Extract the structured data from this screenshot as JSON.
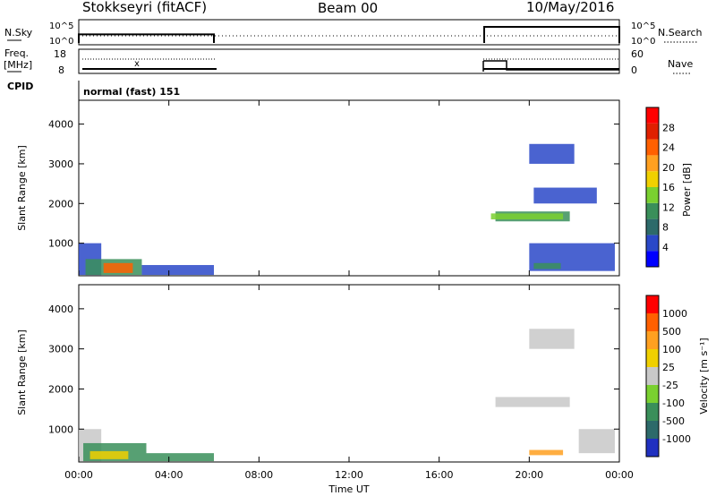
{
  "chart_data": {
    "type": "heatmap",
    "header": {
      "station": "Stokkseyri (fitACF)",
      "beam": "Beam 00",
      "date": "10/May/2016"
    },
    "nsky": {
      "label": "N.Sky",
      "yticks": [
        "10^5",
        "10^0"
      ],
      "right_label": "N.Search",
      "segments": [
        {
          "x_range": [
            "00:00",
            "06:00"
          ],
          "level": 0.4
        },
        {
          "x_range": [
            "18:00",
            "23:59"
          ],
          "level": 0.75
        }
      ]
    },
    "freq": {
      "label_line1": "Freq.",
      "label_line2": "[MHz]",
      "yticks_left": [
        "18",
        "8"
      ],
      "yticks_right": [
        "60",
        "0"
      ],
      "right_label": "Nave",
      "mark": "x"
    },
    "cpid": {
      "label": "CPID",
      "value": "normal (fast) 151"
    },
    "x_axis": {
      "title": "Time UT",
      "ticks": [
        "00:00",
        "04:00",
        "08:00",
        "12:00",
        "16:00",
        "20:00",
        "00:00"
      ],
      "range_hours": [
        0,
        24
      ]
    },
    "panels": [
      {
        "ylabel": "Slant Range [km]",
        "yticks": [
          "1000",
          "2000",
          "3000",
          "4000"
        ],
        "ylim": [
          180,
          4600
        ],
        "colorbar": {
          "title": "Power [dB]",
          "labels": [
            "28",
            "24",
            "20",
            "16",
            "12",
            "8",
            "4"
          ],
          "colors": [
            "#0000ff",
            "#2a48c8",
            "#2d6a6a",
            "#3a8f5a",
            "#7ad030",
            "#f0d000",
            "#ffa020",
            "#ff6000",
            "#e02000",
            "#ff0000"
          ]
        },
        "patches": [
          {
            "x": [
              0.0,
              1.0
            ],
            "r": [
              200,
              1000
            ],
            "color": "#2a48c8"
          },
          {
            "x": [
              0.3,
              2.8
            ],
            "r": [
              200,
              600
            ],
            "color": "#3a8f5a"
          },
          {
            "x": [
              1.1,
              2.4
            ],
            "r": [
              250,
              500
            ],
            "color": "#ff6000"
          },
          {
            "x": [
              2.8,
              6.0
            ],
            "r": [
              200,
              450
            ],
            "color": "#2a48c8"
          },
          {
            "x": [
              18.5,
              21.8
            ],
            "r": [
              1550,
              1800
            ],
            "color": "#3a8f5a"
          },
          {
            "x": [
              18.3,
              21.5
            ],
            "r": [
              1600,
              1750
            ],
            "color": "#7ad030"
          },
          {
            "x": [
              20.0,
              22.0
            ],
            "r": [
              3000,
              3500
            ],
            "color": "#2a48c8"
          },
          {
            "x": [
              20.2,
              23.0
            ],
            "r": [
              2000,
              2400
            ],
            "color": "#2a48c8"
          },
          {
            "x": [
              20.0,
              23.8
            ],
            "r": [
              300,
              1000
            ],
            "color": "#2a48c8"
          },
          {
            "x": [
              20.2,
              21.4
            ],
            "r": [
              350,
              500
            ],
            "color": "#3a8f5a"
          }
        ]
      },
      {
        "ylabel": "Slant Range [km]",
        "yticks": [
          "1000",
          "2000",
          "3000",
          "4000"
        ],
        "ylim": [
          180,
          4600
        ],
        "colorbar": {
          "title": "Velocity [m s⁻¹]",
          "labels": [
            "1000",
            "500",
            "100",
            "25",
            "-25",
            "-100",
            "-500",
            "-1000"
          ],
          "colors": [
            "#2030c0",
            "#2d6a6a",
            "#3a8f5a",
            "#7ad030",
            "#c8c8c8",
            "#f0d000",
            "#ffa020",
            "#ff6000",
            "#ff0000"
          ]
        },
        "patches": [
          {
            "x": [
              0.0,
              1.0
            ],
            "r": [
              200,
              1000
            ],
            "color": "#c8c8c8"
          },
          {
            "x": [
              0.2,
              3.0
            ],
            "r": [
              200,
              650
            ],
            "color": "#3a8f5a"
          },
          {
            "x": [
              0.5,
              2.2
            ],
            "r": [
              250,
              450
            ],
            "color": "#f0d000"
          },
          {
            "x": [
              3.0,
              6.0
            ],
            "r": [
              200,
              400
            ],
            "color": "#3a8f5a"
          },
          {
            "x": [
              18.5,
              21.8
            ],
            "r": [
              1550,
              1800
            ],
            "color": "#c8c8c8"
          },
          {
            "x": [
              20.0,
              22.0
            ],
            "r": [
              3000,
              3500
            ],
            "color": "#c8c8c8"
          },
          {
            "x": [
              20.0,
              21.5
            ],
            "r": [
              350,
              480
            ],
            "color": "#ffa020"
          },
          {
            "x": [
              22.2,
              23.8
            ],
            "r": [
              400,
              1000
            ],
            "color": "#c8c8c8"
          }
        ]
      }
    ]
  }
}
